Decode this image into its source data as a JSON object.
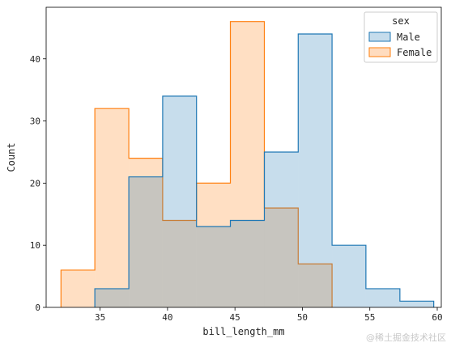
{
  "chart_data": {
    "type": "histogram",
    "xlabel": "bill_length_mm",
    "ylabel": "Count",
    "xlim": [
      31.0,
      60.3
    ],
    "ylim": [
      0,
      48.3
    ],
    "xticks": [
      35,
      40,
      45,
      50,
      55,
      60
    ],
    "yticks": [
      0,
      10,
      20,
      30,
      40
    ],
    "bin_edges": [
      32.1,
      34.61,
      37.13,
      39.64,
      42.15,
      44.66,
      47.18,
      49.69,
      52.2,
      54.71,
      57.23,
      59.74
    ],
    "series": [
      {
        "name": "Male",
        "color": "#1f77b4",
        "fill": "#c5dcec",
        "values": [
          0,
          3,
          21,
          34,
          13,
          14,
          25,
          44,
          10,
          3,
          1
        ]
      },
      {
        "name": "Female",
        "color": "#ff7f0e",
        "fill": "#ffdcbf",
        "values": [
          6,
          32,
          24,
          14,
          20,
          46,
          16,
          7,
          0,
          0,
          0
        ]
      }
    ],
    "legend": {
      "title": "sex",
      "position": "top-right"
    },
    "grid": false
  },
  "watermark": "@稀土掘金技术社区"
}
